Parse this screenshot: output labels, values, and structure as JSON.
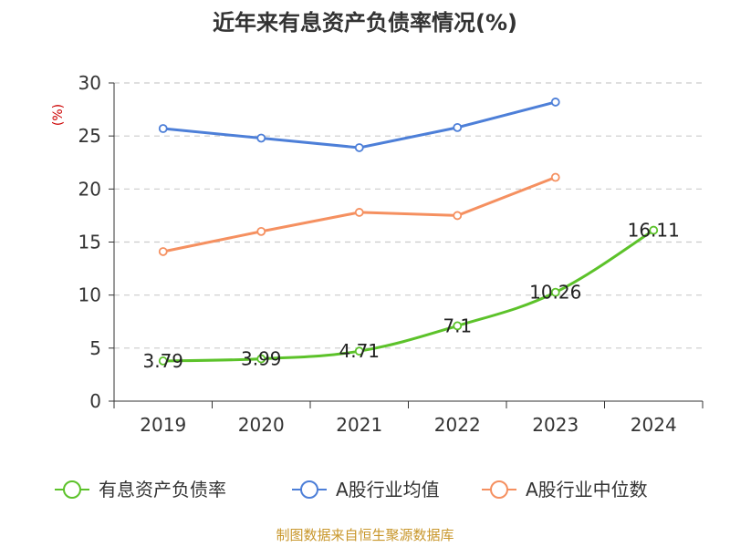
{
  "chart_data": {
    "type": "line",
    "title": "近年来有息资产负债率情况(%)",
    "unit_label": "(%)",
    "categories": [
      "2019",
      "2020",
      "2021",
      "2022",
      "2023",
      "2024"
    ],
    "ylim": [
      0,
      30
    ],
    "yticks": [
      0,
      5,
      10,
      15,
      20,
      25,
      30
    ],
    "grid": true,
    "legend_position": "bottom",
    "series": [
      {
        "name": "有息资产负债率",
        "color": "#5cc22a",
        "values": [
          3.79,
          3.99,
          4.71,
          7.1,
          10.26,
          16.11
        ],
        "labels": [
          "3.79",
          "3.99",
          "4.71",
          "7.1",
          "10.26",
          "16.11"
        ]
      },
      {
        "name": "A股行业均值",
        "color": "#4d7fd8",
        "values": [
          25.7,
          24.8,
          23.9,
          25.8,
          28.2,
          null
        ]
      },
      {
        "name": "A股行业中位数",
        "color": "#f59060",
        "values": [
          14.1,
          16.0,
          17.8,
          17.5,
          21.1,
          null
        ]
      }
    ],
    "source": "制图数据来自恒生聚源数据库"
  }
}
